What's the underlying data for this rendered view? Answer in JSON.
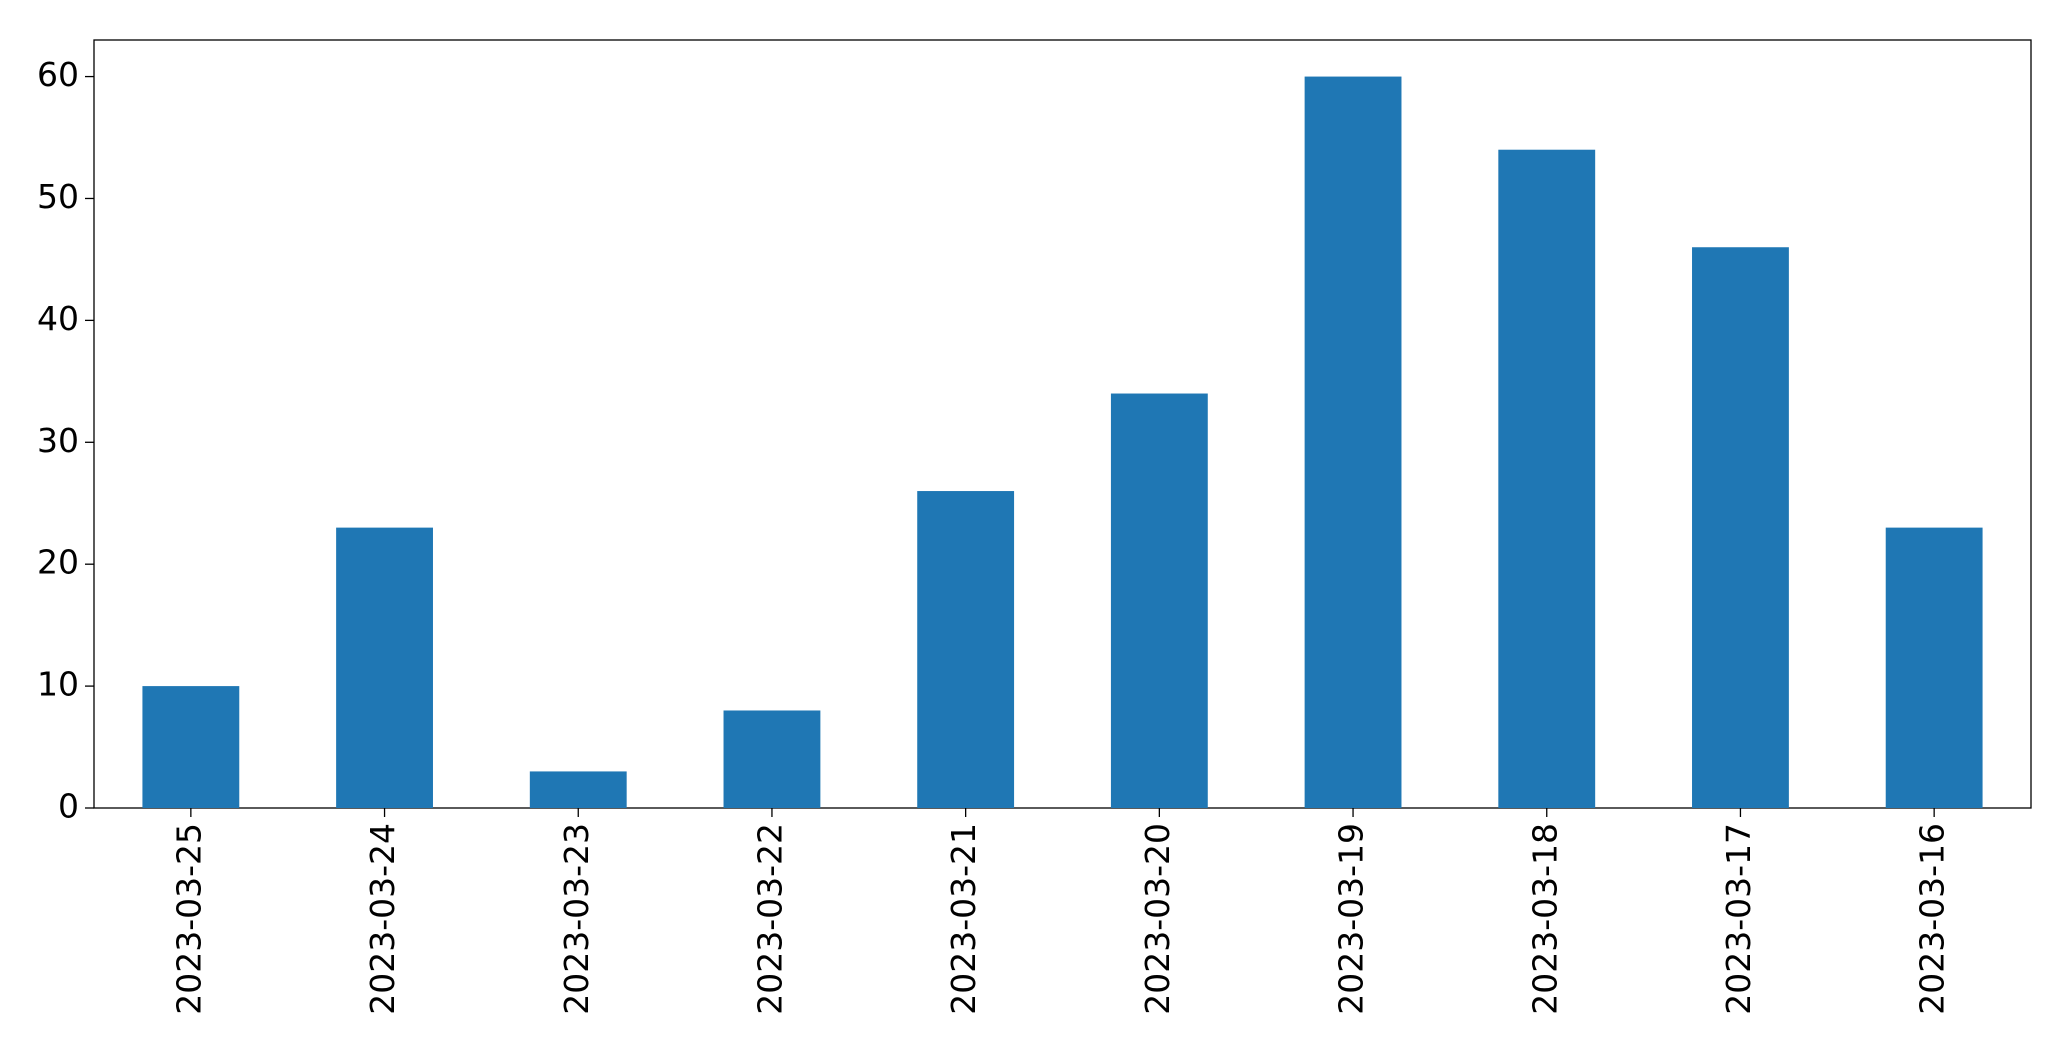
{
  "chart_data": {
    "type": "bar",
    "categories": [
      "2023-03-25",
      "2023-03-24",
      "2023-03-23",
      "2023-03-22",
      "2023-03-21",
      "2023-03-20",
      "2023-03-19",
      "2023-03-18",
      "2023-03-17",
      "2023-03-16"
    ],
    "values": [
      10,
      23,
      3,
      8,
      26,
      34,
      60,
      54,
      46,
      23
    ],
    "color": "#1f77b4",
    "ylim": [
      0,
      63
    ],
    "yticks": [
      0,
      10,
      20,
      30,
      40,
      50,
      60
    ],
    "grid": false
  }
}
